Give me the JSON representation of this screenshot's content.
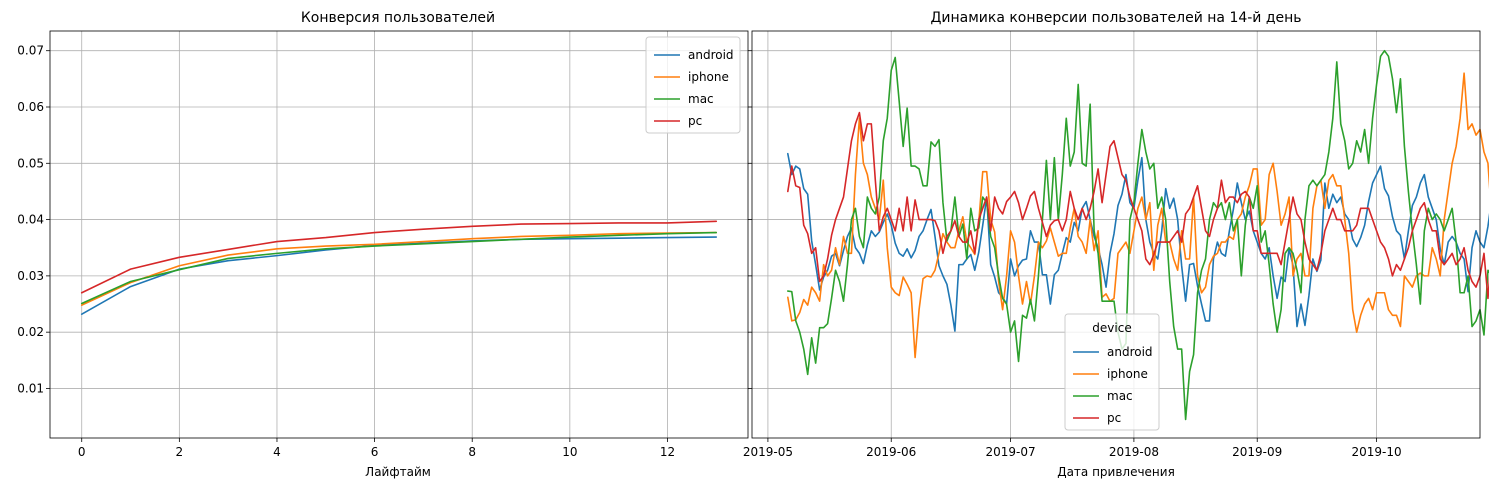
{
  "chart_data": [
    {
      "type": "line",
      "title": "Конверсия пользователей",
      "xlabel": "Лайфтайм",
      "ylabel": "",
      "xlim": [
        -0.65,
        13.65
      ],
      "ylim": [
        0.0012,
        0.0735
      ],
      "xticks": [
        0,
        2,
        4,
        6,
        8,
        10,
        12
      ],
      "xtick_labels": [
        "0",
        "2",
        "4",
        "6",
        "8",
        "10",
        "12"
      ],
      "yticks": [
        0.01,
        0.02,
        0.03,
        0.04,
        0.05,
        0.06,
        0.07
      ],
      "ytick_labels": [
        "0.01",
        "0.02",
        "0.03",
        "0.04",
        "0.05",
        "0.06",
        "0.07"
      ],
      "grid": true,
      "legend": {
        "title": "",
        "placement": "upper right"
      },
      "x": [
        0,
        1,
        2,
        3,
        4,
        5,
        6,
        7,
        8,
        9,
        10,
        11,
        12,
        13
      ],
      "series": [
        {
          "name": "android",
          "color": "#1f77b4",
          "values": [
            0.0232,
            0.0281,
            0.0312,
            0.0327,
            0.0336,
            0.0346,
            0.0354,
            0.0358,
            0.0362,
            0.0365,
            0.0366,
            0.0367,
            0.0368,
            0.0369
          ]
        },
        {
          "name": "iphone",
          "color": "#ff7f0e",
          "values": [
            0.0248,
            0.0288,
            0.0318,
            0.0337,
            0.0348,
            0.0353,
            0.0356,
            0.0361,
            0.0366,
            0.037,
            0.0372,
            0.0375,
            0.0376,
            0.0377
          ]
        },
        {
          "name": "mac",
          "color": "#2ca02c",
          "values": [
            0.0251,
            0.029,
            0.0311,
            0.0331,
            0.034,
            0.0348,
            0.0353,
            0.0357,
            0.0361,
            0.0365,
            0.0369,
            0.0372,
            0.0375,
            0.0377
          ]
        },
        {
          "name": "pc",
          "color": "#d62728",
          "values": [
            0.027,
            0.0312,
            0.0333,
            0.0347,
            0.0361,
            0.0368,
            0.0377,
            0.0383,
            0.0388,
            0.0392,
            0.0393,
            0.0394,
            0.0394,
            0.0397
          ]
        }
      ]
    },
    {
      "type": "line",
      "title": "Динамика конверсии пользователей на 14-й день",
      "xlabel": "Дата привлечения",
      "ylabel": "",
      "x_type": "date",
      "xlim": [
        "2019-04-27",
        "2019-10-27"
      ],
      "ylim": [
        0.0012,
        0.0735
      ],
      "xticks": [
        "2019-05-01",
        "2019-06-01",
        "2019-07-01",
        "2019-08-01",
        "2019-09-01",
        "2019-10-01"
      ],
      "xtick_labels": [
        "2019-05",
        "2019-06",
        "2019-07",
        "2019-08",
        "2019-09",
        "2019-10"
      ],
      "shared_y": true,
      "grid": true,
      "legend": {
        "title": "device",
        "placement": "lower center"
      },
      "x_start": "2019-05-06",
      "x_step_days": 1,
      "series": [
        {
          "name": "android",
          "color": "#1f77b4",
          "values": [
            0.0517,
            0.048,
            0.0495,
            0.049,
            0.0455,
            0.0445,
            0.0362,
            0.032,
            0.0275,
            0.0298,
            0.031,
            0.0335,
            0.034,
            0.0318,
            0.0345,
            0.037,
            0.0385,
            0.035,
            0.034,
            0.0322,
            0.0355,
            0.038,
            0.037,
            0.0378,
            0.0395,
            0.041,
            0.039,
            0.0358,
            0.034,
            0.0335,
            0.0348,
            0.0332,
            0.0345,
            0.037,
            0.038,
            0.04,
            0.0418,
            0.037,
            0.0318,
            0.03,
            0.0285,
            0.0248,
            0.0202,
            0.032,
            0.032,
            0.033,
            0.0338,
            0.031,
            0.0342,
            0.039,
            0.044,
            0.032,
            0.0298,
            0.027,
            0.0262,
            0.025,
            0.033,
            0.03,
            0.0318,
            0.0328,
            0.033,
            0.038,
            0.036,
            0.036,
            0.0302,
            0.0302,
            0.025,
            0.0302,
            0.031,
            0.034,
            0.0368,
            0.036,
            0.0395,
            0.038,
            0.042,
            0.0432,
            0.04,
            0.037,
            0.035,
            0.032,
            0.028,
            0.034,
            0.0375,
            0.0425,
            0.0445,
            0.048,
            0.043,
            0.042,
            0.047,
            0.051,
            0.04,
            0.036,
            0.034,
            0.033,
            0.038,
            0.0455,
            0.042,
            0.0438,
            0.04,
            0.0318,
            0.0255,
            0.032,
            0.0322,
            0.0282,
            0.025,
            0.022,
            0.022,
            0.033,
            0.036,
            0.034,
            0.0335,
            0.038,
            0.0418,
            0.0465,
            0.043,
            0.04,
            0.0415,
            0.038,
            0.036,
            0.034,
            0.033,
            0.035,
            0.03,
            0.026,
            0.0298,
            0.029,
            0.0348,
            0.0318,
            0.021,
            0.025,
            0.0212,
            0.0265,
            0.033,
            0.0308,
            0.0328,
            0.0465,
            0.042,
            0.0445,
            0.043,
            0.044,
            0.041,
            0.04,
            0.0365,
            0.0352,
            0.0368,
            0.039,
            0.0432,
            0.0465,
            0.048,
            0.0495,
            0.0455,
            0.0442,
            0.0405,
            0.038,
            0.0372,
            0.033,
            0.038,
            0.0425,
            0.044,
            0.0465,
            0.048,
            0.044,
            0.042,
            0.04,
            0.0348,
            0.032,
            0.036,
            0.037,
            0.036,
            0.034,
            0.033,
            0.0272,
            0.035,
            0.038,
            0.036,
            0.035,
            0.0388,
            0.044,
            0.048,
            0.0502,
            0.044,
            0.049,
            0.047
          ]
        },
        {
          "name": "iphone",
          "color": "#ff7f0e",
          "values": [
            0.0262,
            0.022,
            0.0222,
            0.0235,
            0.0258,
            0.0248,
            0.028,
            0.027,
            0.0255,
            0.032,
            0.03,
            0.031,
            0.035,
            0.032,
            0.037,
            0.034,
            0.034,
            0.048,
            0.058,
            0.05,
            0.048,
            0.044,
            0.042,
            0.04,
            0.047,
            0.035,
            0.028,
            0.027,
            0.0265,
            0.0298,
            0.0285,
            0.027,
            0.0155,
            0.024,
            0.0295,
            0.03,
            0.0298,
            0.031,
            0.034,
            0.0375,
            0.036,
            0.035,
            0.035,
            0.038,
            0.0405,
            0.036,
            0.035,
            0.0338,
            0.0395,
            0.0485,
            0.0485,
            0.04,
            0.0378,
            0.029,
            0.024,
            0.03,
            0.038,
            0.036,
            0.03,
            0.025,
            0.029,
            0.025,
            0.03,
            0.036,
            0.035,
            0.0362,
            0.0385,
            0.036,
            0.0335,
            0.034,
            0.034,
            0.0385,
            0.042,
            0.037,
            0.036,
            0.034,
            0.04,
            0.0345,
            0.038,
            0.0262,
            0.0268,
            0.0255,
            0.026,
            0.034,
            0.035,
            0.036,
            0.034,
            0.038,
            0.042,
            0.044,
            0.04,
            0.043,
            0.031,
            0.039,
            0.042,
            0.036,
            0.036,
            0.033,
            0.031,
            0.038,
            0.033,
            0.033,
            0.044,
            0.03,
            0.027,
            0.028,
            0.032,
            0.0335,
            0.034,
            0.036,
            0.036,
            0.037,
            0.0365,
            0.04,
            0.041,
            0.044,
            0.046,
            0.049,
            0.049,
            0.039,
            0.04,
            0.048,
            0.05,
            0.045,
            0.039,
            0.041,
            0.044,
            0.03,
            0.033,
            0.034,
            0.03,
            0.03,
            0.042,
            0.046,
            0.047,
            0.042,
            0.047,
            0.048,
            0.046,
            0.046,
            0.04,
            0.034,
            0.024,
            0.02,
            0.023,
            0.025,
            0.026,
            0.024,
            0.027,
            0.027,
            0.027,
            0.024,
            0.023,
            0.023,
            0.021,
            0.03,
            0.029,
            0.028,
            0.03,
            0.0305,
            0.03,
            0.03,
            0.035,
            0.033,
            0.03,
            0.04,
            0.045,
            0.05,
            0.053,
            0.058,
            0.066,
            0.056,
            0.057,
            0.055,
            0.056,
            0.052,
            0.05,
            0.04,
            0.025,
            0.02,
            0.026,
            0.038,
            0.042,
            0.033,
            0.021,
            0.018,
            0.028,
            0.024,
            0.042,
            0.04
          ]
        },
        {
          "name": "mac",
          "color": "#2ca02c",
          "values": [
            0.0273,
            0.0272,
            0.022,
            0.02,
            0.017,
            0.0125,
            0.019,
            0.0145,
            0.0208,
            0.0208,
            0.0215,
            0.026,
            0.031,
            0.029,
            0.0255,
            0.032,
            0.04,
            0.042,
            0.037,
            0.035,
            0.044,
            0.042,
            0.041,
            0.044,
            0.054,
            0.058,
            0.0665,
            0.0688,
            0.061,
            0.053,
            0.0598,
            0.0495,
            0.0495,
            0.049,
            0.046,
            0.046,
            0.0538,
            0.053,
            0.0542,
            0.043,
            0.0362,
            0.038,
            0.044,
            0.037,
            0.0392,
            0.033,
            0.042,
            0.038,
            0.0385,
            0.044,
            0.043,
            0.037,
            0.035,
            0.03,
            0.026,
            0.025,
            0.02,
            0.022,
            0.0148,
            0.023,
            0.0225,
            0.0258,
            0.022,
            0.03,
            0.04,
            0.0505,
            0.04,
            0.051,
            0.04,
            0.048,
            0.058,
            0.0495,
            0.052,
            0.064,
            0.05,
            0.0495,
            0.0605,
            0.038,
            0.034,
            0.0255,
            0.0255,
            0.0255,
            0.0255,
            0.02,
            0.017,
            0.018,
            0.04,
            0.043,
            0.05,
            0.056,
            0.052,
            0.049,
            0.05,
            0.042,
            0.044,
            0.04,
            0.029,
            0.021,
            0.017,
            0.017,
            0.0045,
            0.013,
            0.016,
            0.027,
            0.031,
            0.033,
            0.04,
            0.043,
            0.042,
            0.043,
            0.04,
            0.043,
            0.038,
            0.04,
            0.03,
            0.039,
            0.044,
            0.042,
            0.046,
            0.036,
            0.038,
            0.032,
            0.025,
            0.02,
            0.024,
            0.034,
            0.035,
            0.034,
            0.031,
            0.027,
            0.04,
            0.046,
            0.047,
            0.046,
            0.047,
            0.048,
            0.052,
            0.058,
            0.068,
            0.057,
            0.054,
            0.049,
            0.05,
            0.054,
            0.052,
            0.056,
            0.05,
            0.058,
            0.064,
            0.069,
            0.07,
            0.069,
            0.065,
            0.059,
            0.065,
            0.053,
            0.045,
            0.038,
            0.032,
            0.025,
            0.038,
            0.042,
            0.04,
            0.041,
            0.04,
            0.038,
            0.04,
            0.042,
            0.036,
            0.027,
            0.027,
            0.03,
            0.021,
            0.022,
            0.024,
            0.0195,
            0.031,
            0.03,
            0.026,
            0.025,
            0.02,
            0.028,
            0.036,
            0.0376,
            0.0376,
            0.0376,
            0.053,
            0.053
          ]
        },
        {
          "name": "pc",
          "color": "#d62728",
          "values": [
            0.045,
            0.0495,
            0.046,
            0.0457,
            0.039,
            0.0375,
            0.034,
            0.035,
            0.029,
            0.03,
            0.033,
            0.0372,
            0.04,
            0.042,
            0.044,
            0.049,
            0.054,
            0.057,
            0.059,
            0.054,
            0.057,
            0.057,
            0.047,
            0.038,
            0.0405,
            0.042,
            0.04,
            0.038,
            0.042,
            0.038,
            0.044,
            0.038,
            0.0435,
            0.04,
            0.04,
            0.04,
            0.04,
            0.0398,
            0.038,
            0.034,
            0.037,
            0.038,
            0.0398,
            0.037,
            0.036,
            0.036,
            0.038,
            0.034,
            0.04,
            0.042,
            0.044,
            0.038,
            0.044,
            0.042,
            0.041,
            0.0432,
            0.044,
            0.045,
            0.043,
            0.04,
            0.042,
            0.0442,
            0.045,
            0.042,
            0.0395,
            0.037,
            0.039,
            0.0398,
            0.04,
            0.038,
            0.04,
            0.045,
            0.042,
            0.04,
            0.042,
            0.04,
            0.042,
            0.045,
            0.049,
            0.043,
            0.048,
            0.053,
            0.054,
            0.051,
            0.048,
            0.047,
            0.044,
            0.042,
            0.04,
            0.038,
            0.033,
            0.032,
            0.0338,
            0.036,
            0.036,
            0.036,
            0.036,
            0.037,
            0.038,
            0.036,
            0.041,
            0.042,
            0.044,
            0.046,
            0.042,
            0.038,
            0.037,
            0.04,
            0.042,
            0.047,
            0.043,
            0.044,
            0.044,
            0.043,
            0.0445,
            0.045,
            0.044,
            0.038,
            0.038,
            0.034,
            0.034,
            0.034,
            0.034,
            0.034,
            0.032,
            0.036,
            0.04,
            0.044,
            0.041,
            0.04,
            0.036,
            0.033,
            0.032,
            0.031,
            0.034,
            0.038,
            0.04,
            0.042,
            0.04,
            0.04,
            0.038,
            0.038,
            0.038,
            0.039,
            0.042,
            0.042,
            0.042,
            0.04,
            0.038,
            0.036,
            0.035,
            0.033,
            0.03,
            0.032,
            0.031,
            0.033,
            0.035,
            0.038,
            0.04,
            0.042,
            0.043,
            0.04,
            0.038,
            0.038,
            0.033,
            0.032,
            0.033,
            0.034,
            0.032,
            0.033,
            0.035,
            0.031,
            0.029,
            0.028,
            0.03,
            0.034,
            0.026,
            0.035,
            0.039,
            0.0436,
            0.043,
            0.043,
            0.042,
            0.04,
            0.038,
            0.033,
            0.03,
            0.027,
            0.026,
            0.025,
            0.026
          ]
        }
      ]
    }
  ]
}
